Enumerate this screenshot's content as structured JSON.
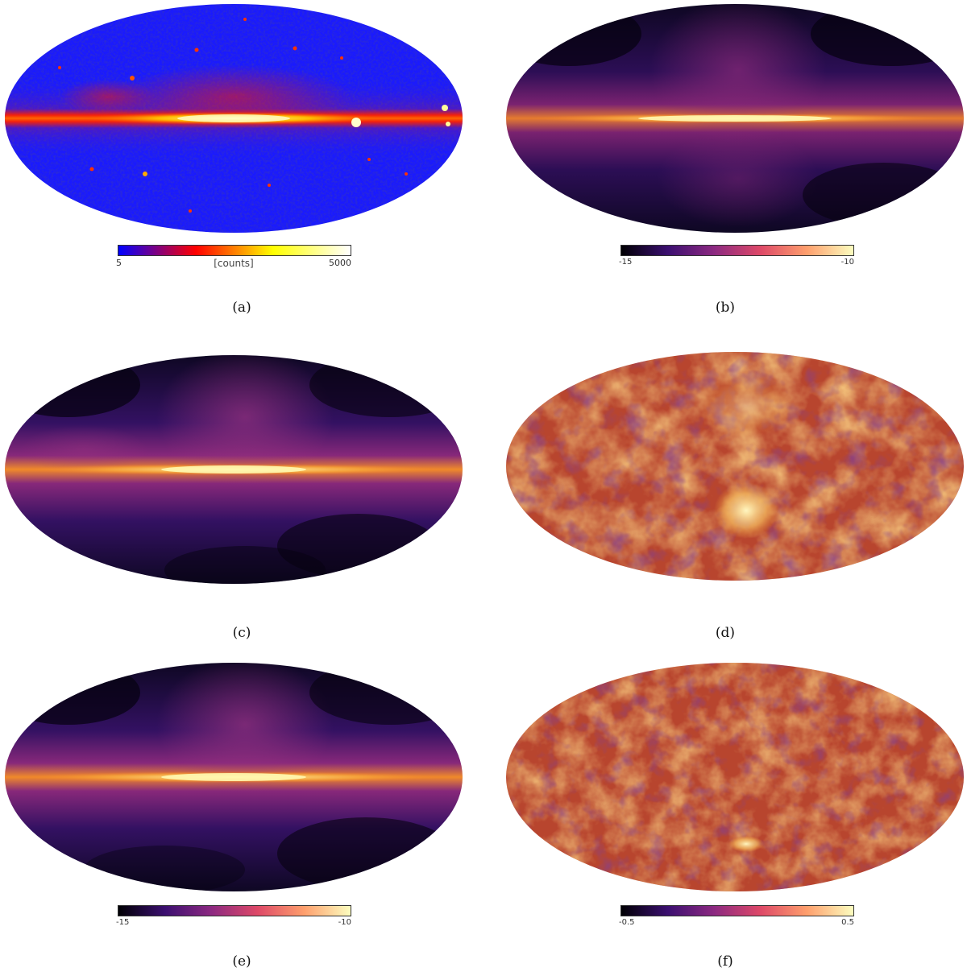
{
  "panels": [
    {
      "id": "a",
      "caption": "(a)",
      "cmap": "counts",
      "colorbar": {
        "min": "5",
        "max": "5000",
        "unit": "[counts]",
        "gradient": [
          "#0000ff",
          "#ff0000",
          "#ffff00",
          "#ffffff"
        ]
      }
    },
    {
      "id": "b",
      "caption": "(b)",
      "cmap": "inferno",
      "colorbar": {
        "min": "-15",
        "max": "-10",
        "gradient": [
          "#000004",
          "#3b0f70",
          "#8c2981",
          "#de4968",
          "#fe9f6d",
          "#fcfdbf"
        ]
      }
    },
    {
      "id": "c",
      "caption": "(c)",
      "cmap": "inferno"
    },
    {
      "id": "d",
      "caption": "(d)",
      "cmap": "residual"
    },
    {
      "id": "e",
      "caption": "(e)",
      "cmap": "inferno",
      "colorbar": {
        "min": "-15",
        "max": "-10",
        "gradient": [
          "#000004",
          "#3b0f70",
          "#8c2981",
          "#de4968",
          "#fe9f6d",
          "#fcfdbf"
        ]
      }
    },
    {
      "id": "f",
      "caption": "(f)",
      "cmap": "residual",
      "colorbar": {
        "min": "-0.5",
        "max": "0.5",
        "gradient": [
          "#000004",
          "#3b0f70",
          "#8c2981",
          "#de4968",
          "#fe9f6d",
          "#fcfdbf"
        ]
      }
    }
  ],
  "colors": {
    "counts_background": "#1a1aff",
    "counts_band": "#ff2200",
    "counts_core": "#ffff66",
    "inferno_dark": "#0d0721",
    "inferno_mid": "#4a1a6e",
    "inferno_band": "#f08a2a",
    "inferno_core": "#fff6a0",
    "residual_base": "#b8452e",
    "residual_light": "#f4a43a",
    "residual_dark": "#3a0d46"
  }
}
